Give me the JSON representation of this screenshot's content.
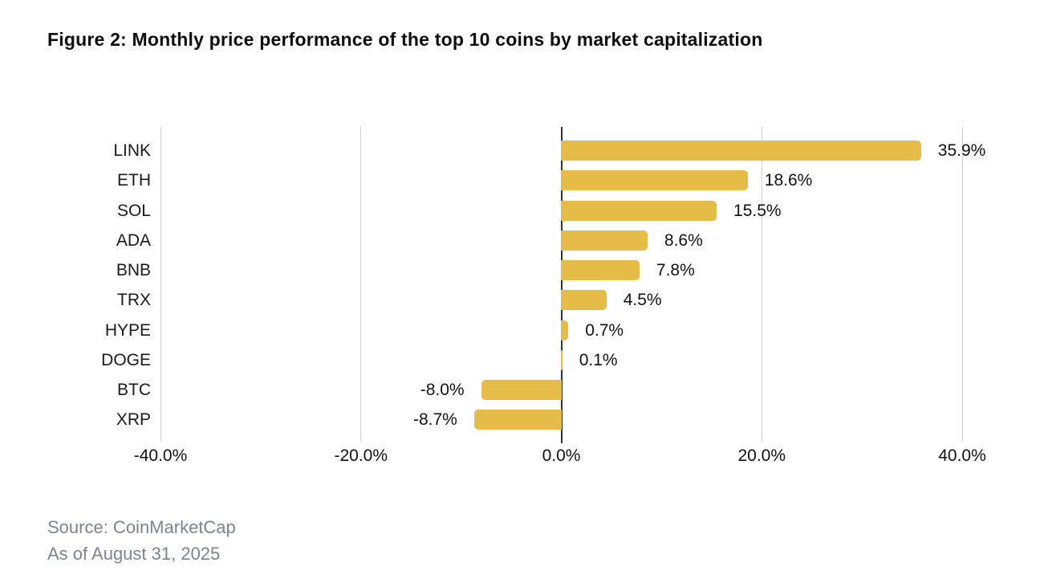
{
  "figure": {
    "title": "Figure 2: Monthly price performance of the top 10 coins by market capitalization",
    "source_line1": "Source: CoinMarketCap",
    "source_line2": "As of August 31, 2025"
  },
  "chart_data": {
    "type": "bar",
    "orientation": "horizontal",
    "title": "Figure 2: Monthly price performance of the top 10 coins by market capitalization",
    "categories": [
      "LINK",
      "ETH",
      "SOL",
      "ADA",
      "BNB",
      "TRX",
      "HYPE",
      "DOGE",
      "BTC",
      "XRP"
    ],
    "values": [
      35.9,
      18.6,
      15.5,
      8.6,
      7.8,
      4.5,
      0.7,
      0.1,
      -8.0,
      -8.7
    ],
    "value_labels": [
      "35.9%",
      "18.6%",
      "15.5%",
      "8.6%",
      "7.8%",
      "4.5%",
      "0.7%",
      "0.1%",
      "-8.0%",
      "-8.7%"
    ],
    "xlabel": "",
    "ylabel": "",
    "xlim": [
      -40,
      40
    ],
    "x_ticks": [
      -40,
      -20,
      0,
      20,
      40
    ],
    "x_tick_labels": [
      "-40.0%",
      "-20.0%",
      "0.0%",
      "20.0%",
      "40.0%"
    ],
    "grid": true,
    "legend": false,
    "bar_color": "#E6BC48",
    "grid_color": "#CFCFCF",
    "zero_line_color": "#333333",
    "label_color": "#111111",
    "source_color": "#7B8494"
  }
}
